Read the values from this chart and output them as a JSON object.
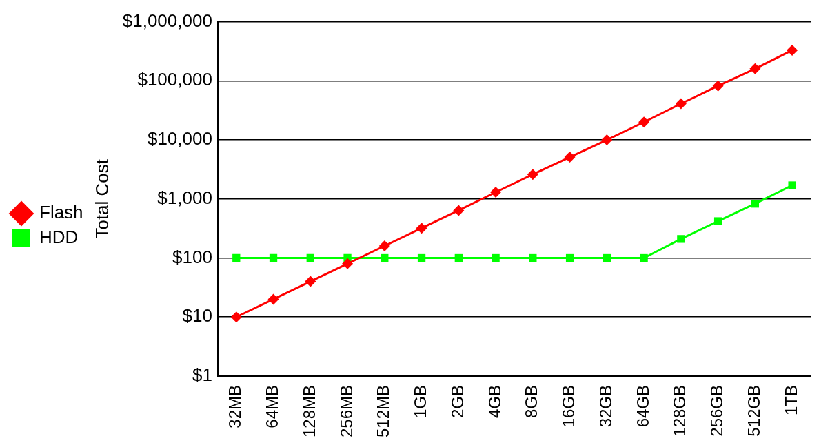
{
  "chart_data": {
    "type": "line",
    "ylabel": "Total Cost",
    "categories": [
      "32MB",
      "64MB",
      "128MB",
      "256MB",
      "512MB",
      "1GB",
      "2GB",
      "4GB",
      "8GB",
      "16GB",
      "32GB",
      "64GB",
      "128GB",
      "256GB",
      "512GB",
      "1TB"
    ],
    "series": [
      {
        "name": "Flash",
        "color": "#ff0000",
        "marker": "diamond",
        "values": [
          10,
          20,
          40,
          80,
          160,
          320,
          640,
          1300,
          2600,
          5100,
          10000,
          20000,
          41000,
          82000,
          160000,
          330000
        ]
      },
      {
        "name": "HDD",
        "color": "#00ff00",
        "marker": "square",
        "values": [
          100,
          100,
          100,
          100,
          100,
          100,
          100,
          100,
          100,
          100,
          100,
          100,
          210,
          420,
          830,
          1700
        ]
      }
    ],
    "log": "y",
    "ylim": [
      1,
      1000000
    ],
    "yticks": [
      {
        "value": 1,
        "label": "$1"
      },
      {
        "value": 10,
        "label": "$10"
      },
      {
        "value": 100,
        "label": "$100"
      },
      {
        "value": 1000,
        "label": "$1,000"
      },
      {
        "value": 10000,
        "label": "$10,000"
      },
      {
        "value": 100000,
        "label": "$100,000"
      },
      {
        "value": 1000000,
        "label": "$1,000,000"
      }
    ],
    "grid": "y",
    "legend": "left",
    "line_style": "solid"
  }
}
